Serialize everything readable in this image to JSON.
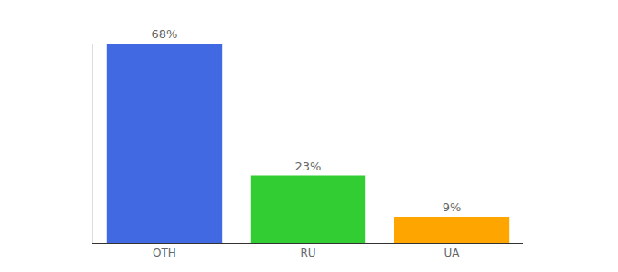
{
  "chart_data": {
    "type": "bar",
    "categories": [
      "OTH",
      "RU",
      "UA"
    ],
    "values": [
      68,
      23,
      9
    ],
    "value_labels": [
      "68%",
      "23%",
      "9%"
    ],
    "colors": [
      "#4169e1",
      "#32cd32",
      "#ffa500"
    ],
    "ylim": [
      0,
      68
    ],
    "data_labels": true,
    "tick_labels": "x",
    "grid": false
  }
}
